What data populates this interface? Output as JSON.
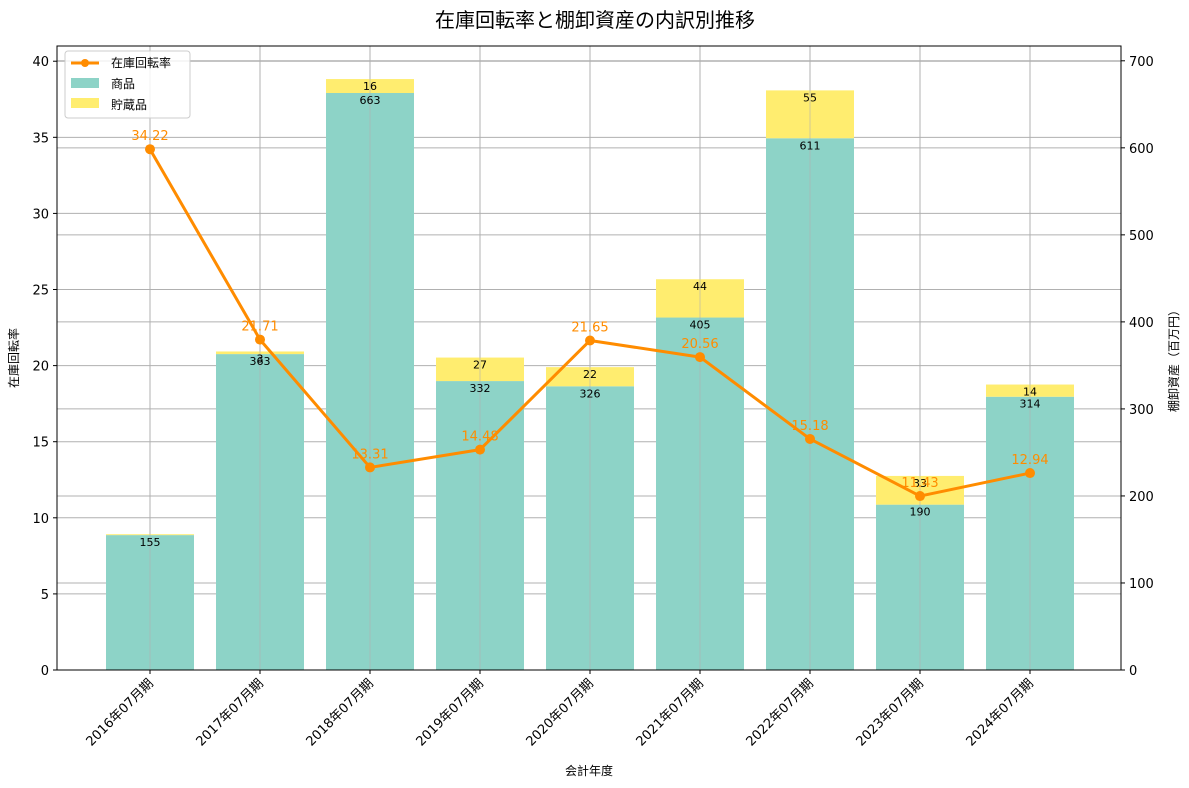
{
  "chart_data": {
    "type": "bar+line",
    "title": "在庫回転率と棚卸資産の内訳別推移",
    "xlabel": "会計年度",
    "ylabel_left": "在庫回転率",
    "ylabel_right": "棚卸資産（百万円）",
    "categories": [
      "2016年07月期",
      "2017年07月期",
      "2018年07月期",
      "2019年07月期",
      "2020年07月期",
      "2021年07月期",
      "2022年07月期",
      "2023年07月期",
      "2024年07月期"
    ],
    "series": [
      {
        "name": "商品",
        "type": "bar",
        "axis": "right",
        "stack": "inventory",
        "color": "#8dd3c7",
        "values": [
          155,
          363,
          663,
          332,
          326,
          405,
          611,
          190,
          314
        ]
      },
      {
        "name": "貯蔵品",
        "type": "bar",
        "axis": "right",
        "stack": "inventory",
        "color": "#ffed6f",
        "values": [
          1,
          3,
          16,
          27,
          22,
          44,
          55,
          33,
          14
        ],
        "labels": [
          "",
          "3",
          "16",
          "27",
          "22",
          "44",
          "55",
          "33",
          "14"
        ]
      },
      {
        "name": "在庫回転率",
        "type": "line",
        "axis": "left",
        "color": "#ff8c00",
        "values": [
          34.22,
          21.71,
          13.31,
          14.48,
          21.65,
          20.56,
          15.18,
          11.43,
          12.94
        ]
      }
    ],
    "ylim_left": [
      0,
      41
    ],
    "ylim_right": [
      0,
      717
    ],
    "yticks_left": [
      0,
      5,
      10,
      15,
      20,
      25,
      30,
      35,
      40
    ],
    "yticks_right": [
      0,
      100,
      200,
      300,
      400,
      500,
      600,
      700
    ],
    "grid": true,
    "legend_position": "upper left",
    "legend": [
      "在庫回転率",
      "商品",
      "貯蔵品"
    ]
  }
}
